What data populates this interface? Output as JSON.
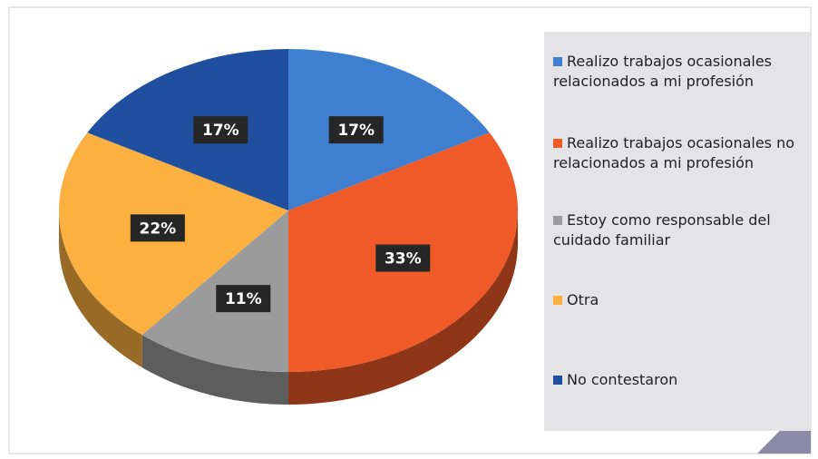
{
  "chart_data": {
    "type": "pie",
    "categories": [
      "Realizo trabajos ocasionales relacionados a mi profesión",
      "Realizo trabajos ocasionales no relacionados a mi profesión",
      "Estoy como responsable del cuidado familiar",
      "Otra",
      "No contestaron"
    ],
    "values": [
      17,
      33,
      11,
      22,
      17
    ],
    "value_labels": [
      "17%",
      "33%",
      "11%",
      "22%",
      "17%"
    ],
    "colors": [
      "#3f7fcf",
      "#f05a28",
      "#9b9b9b",
      "#fbb03f",
      "#1f4f9e"
    ],
    "legend": "right"
  }
}
